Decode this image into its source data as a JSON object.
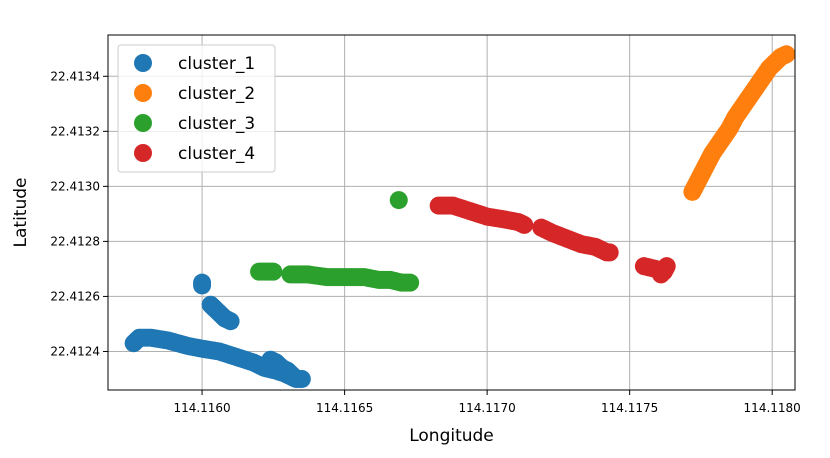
{
  "chart_data": {
    "type": "scatter",
    "title": "",
    "xlabel": "Longitude",
    "ylabel": "Latitude",
    "xlim": [
      114.11567,
      114.11808
    ],
    "ylim": [
      22.41226,
      22.41355
    ],
    "grid": true,
    "legend_position": "top-left",
    "xticks": [
      {
        "value": 114.116,
        "label": "114.1160"
      },
      {
        "value": 114.1165,
        "label": "114.1165"
      },
      {
        "value": 114.117,
        "label": "114.1170"
      },
      {
        "value": 114.1175,
        "label": "114.1175"
      },
      {
        "value": 114.118,
        "label": "114.1180"
      }
    ],
    "yticks": [
      {
        "value": 22.4124,
        "label": "22.4124"
      },
      {
        "value": 22.4126,
        "label": "22.4126"
      },
      {
        "value": 22.4128,
        "label": "22.4128"
      },
      {
        "value": 22.413,
        "label": "22.4130"
      },
      {
        "value": 22.4132,
        "label": "22.4132"
      },
      {
        "value": 22.4134,
        "label": "22.4134"
      }
    ],
    "series": [
      {
        "name": "cluster_1",
        "color": "#1f77b4",
        "segments": [
          [
            [
              114.11576,
              22.41243
            ],
            [
              114.11578,
              22.41245
            ],
            [
              114.11582,
              22.41245
            ],
            [
              114.11588,
              22.41244
            ],
            [
              114.11595,
              22.41242
            ],
            [
              114.116,
              22.41241
            ],
            [
              114.11606,
              22.4124
            ],
            [
              114.11612,
              22.41238
            ],
            [
              114.11618,
              22.41236
            ],
            [
              114.11622,
              22.41234
            ],
            [
              114.11626,
              22.41233
            ],
            [
              114.11629,
              22.41232
            ],
            [
              114.11631,
              22.41231
            ],
            [
              114.11633,
              22.4123
            ],
            [
              114.11635,
              22.4123
            ]
          ],
          [
            [
              114.11624,
              22.41237
            ],
            [
              114.11626,
              22.41236
            ],
            [
              114.11628,
              22.41234
            ],
            [
              114.1163,
              22.41233
            ],
            [
              114.11632,
              22.41231
            ]
          ],
          [
            [
              114.116,
              22.41265
            ],
            [
              114.116,
              22.41264
            ]
          ],
          [
            [
              114.11603,
              22.41257
            ],
            [
              114.11605,
              22.41255
            ],
            [
              114.11607,
              22.41253
            ],
            [
              114.11608,
              22.41252
            ],
            [
              114.1161,
              22.41251
            ]
          ]
        ]
      },
      {
        "name": "cluster_2",
        "color": "#ff7f0e",
        "segments": [
          [
            [
              114.11772,
              22.41298
            ],
            [
              114.11773,
              22.413
            ],
            [
              114.11774,
              22.41302
            ],
            [
              114.11775,
              22.41304
            ],
            [
              114.11776,
              22.41306
            ],
            [
              114.11777,
              22.41308
            ],
            [
              114.11778,
              22.4131
            ],
            [
              114.11779,
              22.41312
            ],
            [
              114.11781,
              22.41315
            ],
            [
              114.11783,
              22.41318
            ],
            [
              114.11785,
              22.41321
            ],
            [
              114.11787,
              22.41325
            ],
            [
              114.11789,
              22.41328
            ],
            [
              114.11791,
              22.41331
            ],
            [
              114.11793,
              22.41334
            ],
            [
              114.11795,
              22.41337
            ],
            [
              114.11797,
              22.4134
            ],
            [
              114.11799,
              22.41343
            ],
            [
              114.11801,
              22.41345
            ],
            [
              114.11803,
              22.41347
            ],
            [
              114.11805,
              22.41348
            ]
          ]
        ]
      },
      {
        "name": "cluster_3",
        "color": "#2ca02c",
        "segments": [
          [
            [
              114.1162,
              22.41269
            ],
            [
              114.11622,
              22.41269
            ],
            [
              114.11625,
              22.41269
            ]
          ],
          [
            [
              114.11631,
              22.41268
            ],
            [
              114.11637,
              22.41268
            ],
            [
              114.11644,
              22.41267
            ],
            [
              114.11651,
              22.41267
            ],
            [
              114.11657,
              22.41267
            ],
            [
              114.11662,
              22.41266
            ],
            [
              114.11666,
              22.41266
            ],
            [
              114.1167,
              22.41265
            ],
            [
              114.11673,
              22.41265
            ]
          ],
          [
            [
              114.11669,
              22.41295
            ]
          ]
        ]
      },
      {
        "name": "cluster_4",
        "color": "#d62728",
        "segments": [
          [
            [
              114.11683,
              22.41293
            ],
            [
              114.11688,
              22.41293
            ],
            [
              114.11694,
              22.41291
            ],
            [
              114.117,
              22.41289
            ],
            [
              114.11706,
              22.41288
            ],
            [
              114.11711,
              22.41287
            ],
            [
              114.11713,
              22.41286
            ]
          ],
          [
            [
              114.11719,
              22.41285
            ],
            [
              114.11723,
              22.41283
            ],
            [
              114.11728,
              22.41281
            ],
            [
              114.11733,
              22.41279
            ],
            [
              114.11738,
              22.41278
            ],
            [
              114.11742,
              22.41276
            ],
            [
              114.11743,
              22.41276
            ]
          ],
          [
            [
              114.11755,
              22.41271
            ],
            [
              114.11759,
              22.4127
            ],
            [
              114.11762,
              22.41269
            ],
            [
              114.11763,
              22.41271
            ],
            [
              114.11761,
              22.41268
            ]
          ]
        ]
      }
    ]
  }
}
